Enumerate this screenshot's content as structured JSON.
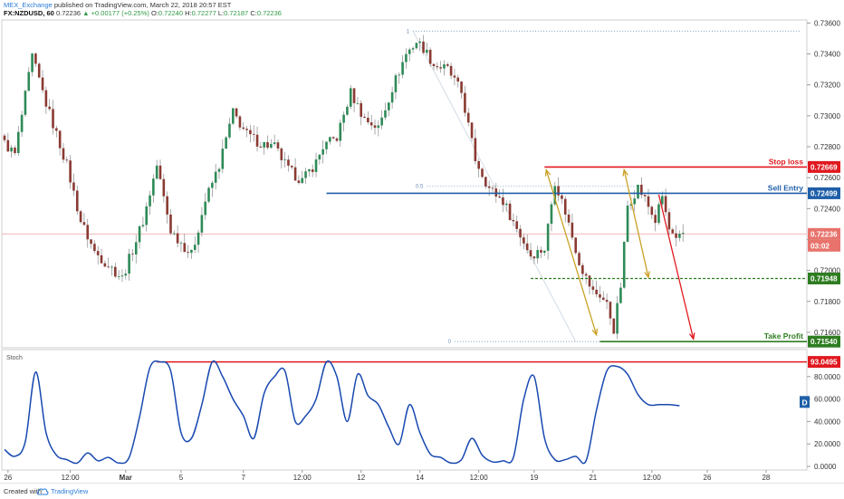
{
  "header": {
    "publisher": "MEX_Exchange",
    "published_text": "published on TradingView.com, March 22, 2018 20:57 EST",
    "symbol": "FX:NZDUSD, 60",
    "last": "0.72236",
    "change": "▲ +0.00177 (+0.25%)",
    "o_label": "O:",
    "o_value": "0.72240",
    "h_label": "H:",
    "h_value": "0.72277",
    "l_label": "L:",
    "l_value": "0.72187",
    "c_label": "C:",
    "c_value": "0.72236"
  },
  "footer": {
    "created_with": "Created with",
    "brand": "TradingView"
  },
  "colors": {
    "up": "#2e8a57",
    "down": "#8a3a32",
    "wick": "#888888",
    "stop": "#e0191f",
    "entry": "#1f5fa8",
    "target": "#2e7d21",
    "stoch": "#1848b0",
    "arrow_gold": "#c9a227",
    "arrow_red": "#e0191f",
    "fib": "#6e8fb9"
  },
  "chart_data": [
    {
      "type": "candlestick",
      "symbol": "FX:NZDUSD",
      "timeframe": "60",
      "ylim": [
        0.715,
        0.7362
      ],
      "y_ticks": [
        "0.73600",
        "0.73400",
        "0.73200",
        "0.73000",
        "0.72800",
        "0.72600",
        "0.72400",
        "0.72200",
        "0.72000",
        "0.71800",
        "0.71600"
      ],
      "y_tick_values": [
        0.736,
        0.734,
        0.732,
        0.73,
        0.728,
        0.726,
        0.724,
        0.722,
        0.72,
        0.718,
        0.716
      ],
      "x_ticks": [
        "26",
        "12:00",
        "Mar",
        "5",
        "7",
        "12:00",
        "12",
        "14",
        "12:00",
        "19",
        "21",
        "12:00",
        "26",
        "28"
      ],
      "x_tick_bar_index": [
        1,
        19,
        35,
        51,
        69,
        86,
        103,
        120,
        137,
        153,
        170,
        187,
        203,
        220
      ],
      "total_bars": 232,
      "series": {
        "knots_index": [
          0,
          3,
          8,
          12,
          18,
          22,
          26,
          34,
          40,
          44,
          48,
          54,
          58,
          62,
          66,
          70,
          74,
          78,
          82,
          86,
          90,
          92,
          96,
          100,
          104,
          108,
          112,
          116,
          119,
          121,
          124,
          128,
          132,
          136,
          140,
          144,
          148,
          152,
          156,
          159,
          162,
          166,
          168,
          170,
          172,
          174,
          176,
          178,
          180,
          183,
          185,
          188,
          190,
          192,
          194,
          196
        ],
        "knots_price": [
          0.7282,
          0.7275,
          0.7338,
          0.7308,
          0.7268,
          0.7232,
          0.7212,
          0.7195,
          0.7232,
          0.7268,
          0.7226,
          0.721,
          0.7245,
          0.7268,
          0.7302,
          0.7288,
          0.7282,
          0.728,
          0.7265,
          0.7258,
          0.727,
          0.728,
          0.7286,
          0.7315,
          0.7298,
          0.7292,
          0.7318,
          0.734,
          0.7348,
          0.7344,
          0.7333,
          0.733,
          0.7315,
          0.7272,
          0.7253,
          0.7245,
          0.7227,
          0.721,
          0.7214,
          0.7258,
          0.7238,
          0.7206,
          0.7195,
          0.7186,
          0.7184,
          0.7178,
          0.7162,
          0.719,
          0.7242,
          0.7254,
          0.7246,
          0.7232,
          0.7248,
          0.7226,
          0.7218,
          0.7224
        ]
      },
      "levels": [
        {
          "label": "Stop loss",
          "price_label": "0.72669",
          "price": 0.72669
        },
        {
          "label": "Sell Entry",
          "price_label": "0.72499",
          "price": 0.72499
        },
        {
          "label": "",
          "price_label": "0.72236",
          "price": 0.72236
        },
        {
          "label": "",
          "price_label": "03:02",
          "price": 0.7214
        },
        {
          "label": "",
          "price_label": "0.71948",
          "price": 0.71948
        },
        {
          "label": "Take Profit",
          "price_label": "0.71540",
          "price": 0.7154
        }
      ],
      "fibonacci": [
        {
          "label": "1",
          "price": 0.73548
        },
        {
          "label": "0.5",
          "price": 0.72544
        },
        {
          "label": "0",
          "price": 0.7154
        }
      ]
    },
    {
      "type": "line",
      "title": "Stoch",
      "ylim": [
        0,
        100
      ],
      "y_ticks": [
        "80.0000",
        "60.0000",
        "40.0000",
        "20.0000",
        "0.0000"
      ],
      "y_tick_values": [
        80,
        60,
        40,
        20,
        0
      ],
      "indicator_badge": "D",
      "level": {
        "price_label": "93.0495",
        "value": 93.05
      },
      "series": [
        {
          "name": "",
          "x_index": [
            0,
            3,
            6,
            9,
            12,
            15,
            18,
            21,
            24,
            27,
            30,
            33,
            36,
            39,
            42,
            45,
            48,
            51,
            54,
            57,
            60,
            63,
            66,
            69,
            72,
            75,
            78,
            81,
            84,
            87,
            90,
            93,
            96,
            99,
            102,
            105,
            108,
            111,
            114,
            117,
            120,
            123,
            126,
            129,
            132,
            135,
            138,
            141,
            144,
            147,
            150,
            153,
            156,
            159,
            162,
            165,
            168,
            171,
            174,
            177,
            180,
            183,
            186,
            189,
            192,
            195
          ],
          "values": [
            15,
            9,
            22,
            84,
            30,
            10,
            6,
            3,
            12,
            5,
            8,
            3,
            8,
            44,
            88,
            93,
            85,
            30,
            25,
            55,
            93,
            80,
            60,
            45,
            25,
            65,
            80,
            85,
            40,
            45,
            60,
            93,
            80,
            40,
            82,
            63,
            55,
            35,
            20,
            55,
            30,
            11,
            8,
            3,
            6,
            25,
            10,
            4,
            5,
            8,
            60,
            80,
            25,
            6,
            6,
            9,
            5,
            50,
            85,
            89,
            82,
            64,
            55,
            55,
            55,
            54
          ]
        }
      ]
    }
  ]
}
